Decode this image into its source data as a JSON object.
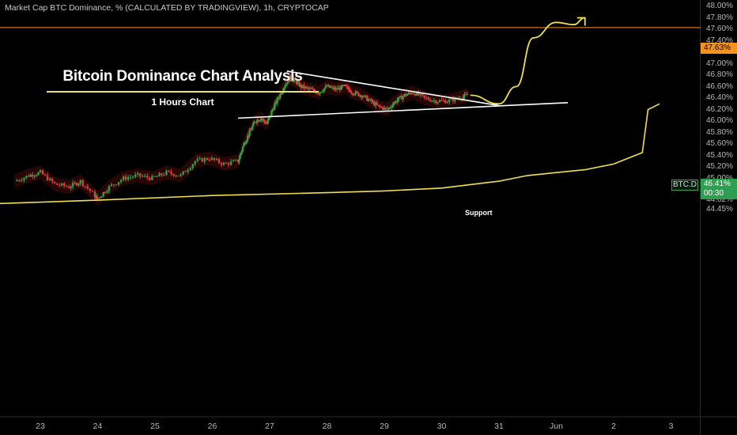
{
  "header": {
    "text": "Market Cap BTC Dominance, % (CALCULATED BY TRADINGVIEW), 1h, CRYPTOCAP"
  },
  "annotation": {
    "title": "Bitcoin Dominance Chart Analysis",
    "subtitle": "1 Hours Chart",
    "support_label": "Support"
  },
  "price_scale": {
    "ticks": [
      "48.00%",
      "47.80%",
      "47.60%",
      "47.40%",
      "47.20%",
      "47.00%",
      "46.80%",
      "46.60%",
      "46.40%",
      "46.20%",
      "46.00%",
      "45.80%",
      "45.60%",
      "45.40%",
      "45.20%",
      "45.00%",
      "44.80%",
      "44.62%",
      "44.45%"
    ],
    "resistance_label": "47.63%",
    "symbol": "BTC.D",
    "last_value": "46.41%",
    "countdown": "00:30"
  },
  "time_scale": {
    "ticks": [
      "23",
      "24",
      "25",
      "26",
      "27",
      "28",
      "29",
      "30",
      "31",
      "Jun",
      "2",
      "3"
    ]
  },
  "colors": {
    "up": "#2ea043",
    "down": "#e03a3a",
    "projection": "#f0e050",
    "resistance": "#f7931a",
    "cloud_red": "#4a0b0b",
    "cloud_green": "#0b3a14",
    "trendline": "#ffffff"
  },
  "chart_data": {
    "type": "line",
    "title": "Market Cap BTC Dominance, % (CALCULATED BY TRADINGVIEW), 1h, CRYPTOCAP",
    "ylabel": "",
    "xlabel": "",
    "ylim": [
      44.45,
      48.0
    ],
    "x_ticks": [
      "23",
      "24",
      "25",
      "26",
      "27",
      "28",
      "29",
      "30",
      "31",
      "Jun",
      "2",
      "3"
    ],
    "resistance_level": 47.63,
    "last_value": 46.41,
    "price_path": [
      [
        22.55,
        44.95
      ],
      [
        22.8,
        45.05
      ],
      [
        23.0,
        45.1
      ],
      [
        23.25,
        44.9
      ],
      [
        23.5,
        44.85
      ],
      [
        23.7,
        44.95
      ],
      [
        23.95,
        44.7
      ],
      [
        24.0,
        44.65
      ],
      [
        24.2,
        44.85
      ],
      [
        24.45,
        45.0
      ],
      [
        24.7,
        45.05
      ],
      [
        24.95,
        45.0
      ],
      [
        25.2,
        45.1
      ],
      [
        25.45,
        45.05
      ],
      [
        25.7,
        45.3
      ],
      [
        25.95,
        45.35
      ],
      [
        26.2,
        45.25
      ],
      [
        26.45,
        45.3
      ],
      [
        26.55,
        45.6
      ],
      [
        26.65,
        45.8
      ],
      [
        26.75,
        46.0
      ],
      [
        26.85,
        46.05
      ],
      [
        26.95,
        45.95
      ],
      [
        27.05,
        46.2
      ],
      [
        27.15,
        46.4
      ],
      [
        27.25,
        46.6
      ],
      [
        27.35,
        46.75
      ],
      [
        27.45,
        46.7
      ],
      [
        27.55,
        46.6
      ],
      [
        27.7,
        46.55
      ],
      [
        27.85,
        46.5
      ],
      [
        28.0,
        46.6
      ],
      [
        28.15,
        46.55
      ],
      [
        28.3,
        46.6
      ],
      [
        28.45,
        46.5
      ],
      [
        28.6,
        46.45
      ],
      [
        28.75,
        46.35
      ],
      [
        28.9,
        46.25
      ],
      [
        29.05,
        46.2
      ],
      [
        29.2,
        46.35
      ],
      [
        29.35,
        46.45
      ],
      [
        29.5,
        46.5
      ],
      [
        29.7,
        46.4
      ],
      [
        29.9,
        46.35
      ],
      [
        30.1,
        46.35
      ],
      [
        30.3,
        46.4
      ],
      [
        30.45,
        46.45
      ]
    ],
    "trendlines": [
      {
        "name": "resistance",
        "points": [
          [
            27.3,
            46.87
          ],
          [
            31.0,
            46.27
          ]
        ]
      },
      {
        "name": "support",
        "points": [
          [
            26.45,
            46.05
          ],
          [
            32.2,
            46.32
          ]
        ]
      }
    ],
    "projection": [
      [
        30.5,
        46.45
      ],
      [
        31.0,
        46.3
      ],
      [
        31.3,
        46.6
      ],
      [
        31.6,
        47.45
      ],
      [
        32.0,
        47.72
      ],
      [
        32.3,
        47.68
      ],
      [
        32.5,
        47.8
      ]
    ],
    "moving_average": [
      [
        22.0,
        44.55
      ],
      [
        24.0,
        44.62
      ],
      [
        26.0,
        44.7
      ],
      [
        28.0,
        44.75
      ],
      [
        29.0,
        44.78
      ],
      [
        30.0,
        44.83
      ],
      [
        31.0,
        44.95
      ],
      [
        31.5,
        45.05
      ],
      [
        32.0,
        45.1
      ],
      [
        32.5,
        45.15
      ],
      [
        33.0,
        45.25
      ],
      [
        33.5,
        45.45
      ],
      [
        33.6,
        46.2
      ],
      [
        33.8,
        46.3
      ]
    ]
  }
}
